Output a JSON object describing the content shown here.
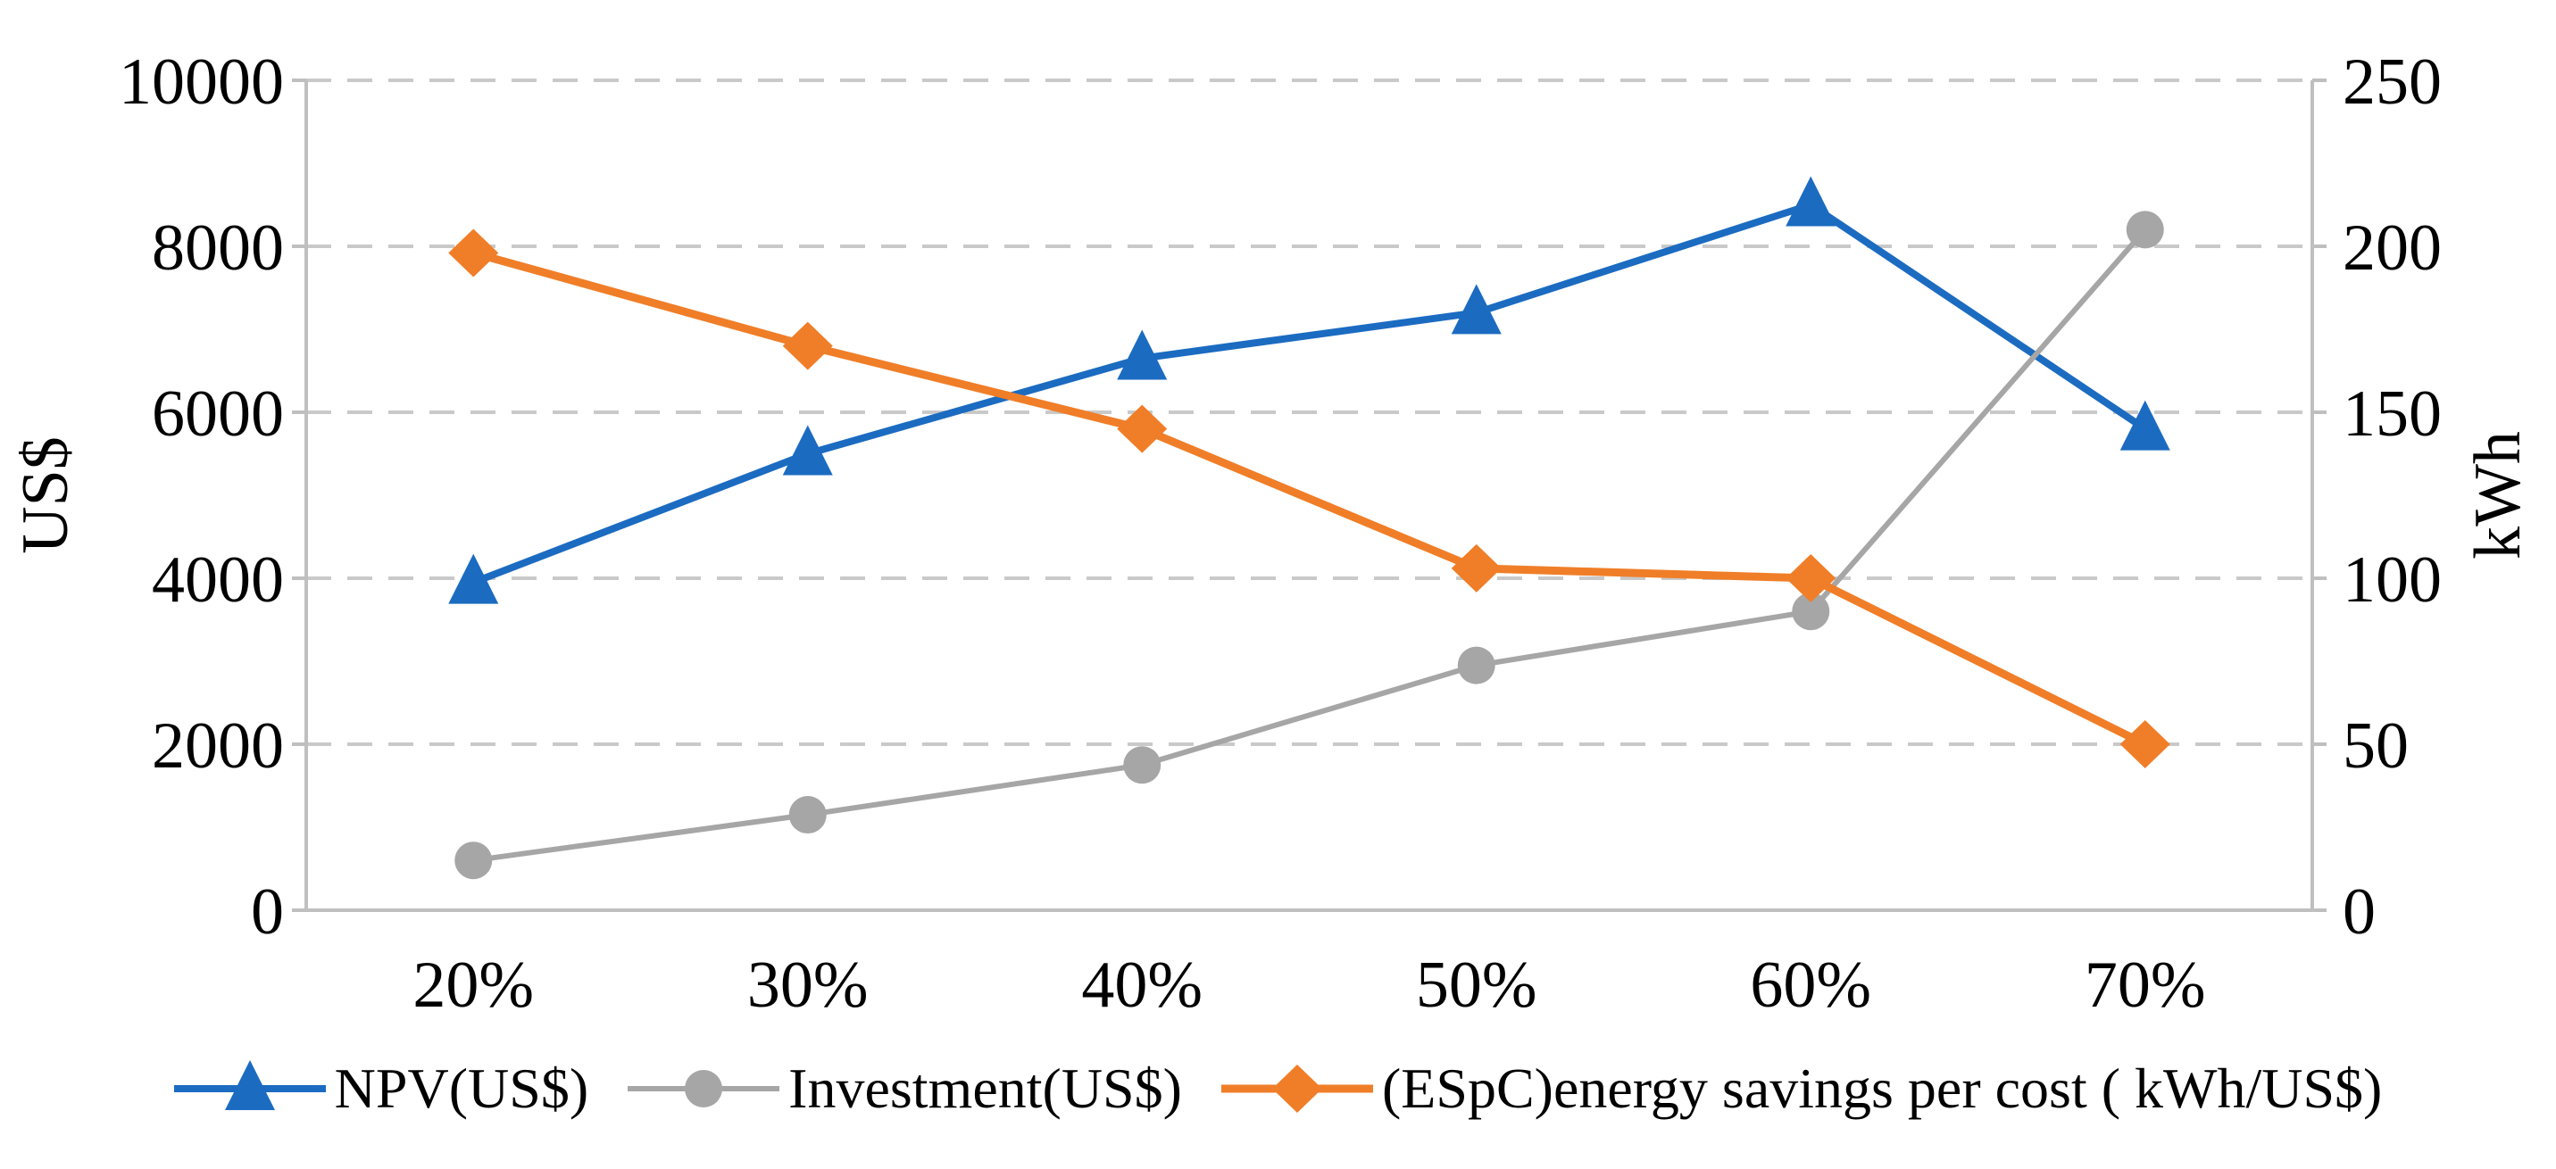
{
  "chart_data": {
    "type": "line",
    "title": "",
    "categories": [
      "20%",
      "30%",
      "40%",
      "50%",
      "60%",
      "70%"
    ],
    "series": [
      {
        "id": "npv",
        "name": "NPV(US$)",
        "axis": "left",
        "color": "#1B6BC1",
        "marker": "triangle",
        "line_width": 8,
        "values": [
          3950,
          5500,
          6650,
          7200,
          8500,
          5800
        ]
      },
      {
        "id": "investment",
        "name": "Investment(US$)",
        "axis": "left",
        "color": "#A6A6A6",
        "marker": "circle",
        "line_width": 6,
        "values": [
          600,
          1150,
          1750,
          2950,
          3600,
          8200
        ]
      },
      {
        "id": "espc",
        "name": "(ESpC)energy savings per cost ( kWh/US$)",
        "axis": "right",
        "color": "#F07E28",
        "marker": "diamond",
        "line_width": 9,
        "values": [
          198,
          170,
          145,
          103,
          100,
          50
        ]
      }
    ],
    "left_axis": {
      "title": "US$",
      "min": 0,
      "max": 10000,
      "step": 2000,
      "ticks": [
        "0",
        "2000",
        "4000",
        "6000",
        "8000",
        "10000"
      ]
    },
    "right_axis": {
      "title": "kWh",
      "min": 0,
      "max": 250,
      "step": 50,
      "ticks": [
        "0",
        "50",
        "100",
        "150",
        "200",
        "250"
      ]
    },
    "x_axis": {
      "labels": [
        "20%",
        "30%",
        "40%",
        "50%",
        "60%",
        "70%"
      ]
    },
    "grid": {
      "horizontal": "dashed",
      "vertical": "none"
    },
    "legend_position": "bottom",
    "colors": {
      "background": "#FFFFFF",
      "axis_line": "#BFBFBF",
      "gridline": "#C9C9C9",
      "text": "#000000"
    }
  }
}
